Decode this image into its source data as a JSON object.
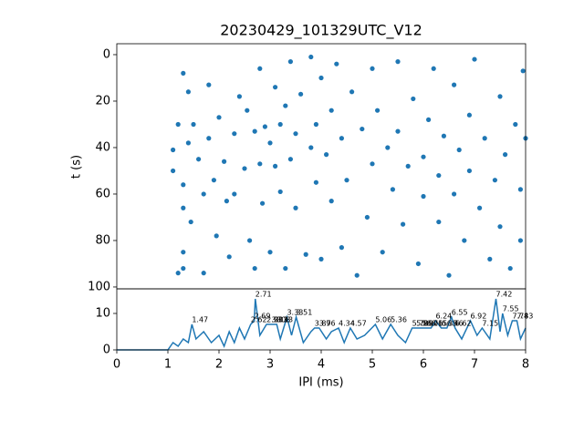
{
  "chart_data": [
    {
      "type": "scatter",
      "title": "20230429_101329UTC_V12",
      "ylabel": "t (s)",
      "color": "#1f77b4",
      "x": [
        1.1,
        1.1,
        1.2,
        1.3,
        1.3,
        1.3,
        1.3,
        1.3,
        1.2,
        1.4,
        1.4,
        1.45,
        1.5,
        1.6,
        1.7,
        1.7,
        1.8,
        1.8,
        1.9,
        1.95,
        2.0,
        2.1,
        2.15,
        2.2,
        2.3,
        2.3,
        2.4,
        2.5,
        2.55,
        2.6,
        2.7,
        2.7,
        2.8,
        2.8,
        2.85,
        2.9,
        3.0,
        3.0,
        3.1,
        3.1,
        3.2,
        3.2,
        3.3,
        3.3,
        3.4,
        3.4,
        3.5,
        3.5,
        3.6,
        3.7,
        3.8,
        3.8,
        3.9,
        3.9,
        4.0,
        4.0,
        4.1,
        4.2,
        4.2,
        4.3,
        4.4,
        4.4,
        4.5,
        4.6,
        4.7,
        4.8,
        4.9,
        5.0,
        5.0,
        5.1,
        5.2,
        5.3,
        5.4,
        5.5,
        5.5,
        5.6,
        5.7,
        5.8,
        5.9,
        6.0,
        6.0,
        6.1,
        6.2,
        6.3,
        6.3,
        6.4,
        6.5,
        6.6,
        6.6,
        6.7,
        6.8,
        6.9,
        6.9,
        7.0,
        7.1,
        7.2,
        7.3,
        7.4,
        7.5,
        7.5,
        7.6,
        7.7,
        7.8,
        7.9,
        7.95,
        7.9,
        8.0
      ],
      "y": [
        41,
        50,
        30,
        8,
        56,
        66,
        85,
        92,
        94,
        16,
        38,
        72,
        30,
        45,
        60,
        94,
        13,
        36,
        54,
        78,
        27,
        46,
        63,
        87,
        34,
        60,
        18,
        49,
        24,
        80,
        33,
        92,
        6,
        47,
        64,
        31,
        38,
        85,
        14,
        48,
        30,
        59,
        22,
        92,
        3,
        45,
        66,
        34,
        17,
        86,
        1,
        40,
        55,
        30,
        10,
        88,
        43,
        24,
        63,
        4,
        36,
        83,
        54,
        16,
        95,
        32,
        70,
        6,
        47,
        24,
        85,
        40,
        58,
        3,
        33,
        73,
        48,
        19,
        90,
        44,
        61,
        28,
        6,
        52,
        72,
        35,
        95,
        13,
        60,
        41,
        80,
        26,
        50,
        2,
        66,
        36,
        88,
        54,
        18,
        74,
        43,
        92,
        30,
        58,
        7,
        80,
        36
      ],
      "xlim": [
        0,
        8
      ],
      "ylim": [
        100.8,
        -4.7
      ],
      "yticks": [
        0,
        20,
        40,
        60,
        80,
        100
      ]
    },
    {
      "type": "line",
      "xlabel": "IPI (ms)",
      "color": "#1f77b4",
      "x": [
        0,
        0.5,
        1.0,
        1.05,
        1.1,
        1.2,
        1.3,
        1.4,
        1.47,
        1.55,
        1.7,
        1.85,
        2.0,
        2.1,
        2.2,
        2.3,
        2.4,
        2.5,
        2.62,
        2.69,
        2.71,
        2.8,
        2.93,
        3.03,
        3.08,
        3.13,
        3.2,
        3.33,
        3.42,
        3.51,
        3.65,
        3.8,
        3.87,
        3.96,
        4.1,
        4.2,
        4.34,
        4.45,
        4.57,
        4.7,
        4.85,
        5.06,
        5.2,
        5.36,
        5.5,
        5.65,
        5.78,
        5.86,
        5.97,
        6.06,
        6.15,
        6.24,
        6.35,
        6.46,
        6.55,
        6.62,
        6.75,
        6.92,
        7.05,
        7.15,
        7.3,
        7.42,
        7.5,
        7.55,
        7.65,
        7.74,
        7.83,
        7.9,
        8.0
      ],
      "values": [
        0,
        0,
        0,
        1,
        2,
        1,
        3,
        2,
        7,
        3,
        5,
        2,
        4,
        1,
        5,
        2,
        6,
        3,
        7,
        8,
        14,
        4,
        7,
        7,
        7,
        7,
        3,
        9,
        4,
        9,
        2,
        5,
        6,
        6,
        3,
        5,
        6,
        2,
        6,
        3,
        4,
        7,
        3,
        7,
        4,
        2,
        6,
        6,
        6,
        6,
        6,
        8,
        6,
        6,
        9,
        6,
        3,
        8,
        4,
        6,
        3,
        14,
        5,
        10,
        4,
        8,
        8,
        3,
        6
      ],
      "peaks": {
        "x": [
          1.47,
          2.62,
          2.69,
          2.71,
          2.93,
          3.03,
          3.08,
          3.13,
          3.33,
          3.51,
          3.87,
          3.96,
          4.34,
          4.57,
          5.06,
          5.36,
          5.78,
          5.86,
          5.97,
          6.06,
          6.15,
          6.24,
          6.35,
          6.46,
          6.55,
          6.62,
          6.92,
          7.15,
          7.42,
          7.55,
          7.74,
          7.83
        ],
        "y": [
          7,
          7,
          8,
          14,
          7,
          7,
          7,
          7,
          9,
          9,
          6,
          6,
          6,
          6,
          7,
          7,
          6,
          6,
          6,
          6,
          6,
          8,
          6,
          6,
          9,
          6,
          8,
          6,
          14,
          10,
          8,
          8
        ]
      },
      "xlim": [
        0,
        8
      ],
      "ylim": [
        0,
        16.75
      ],
      "xticks": [
        0,
        1,
        2,
        3,
        4,
        5,
        6,
        7,
        8
      ],
      "yticks": [
        0,
        10
      ]
    }
  ]
}
